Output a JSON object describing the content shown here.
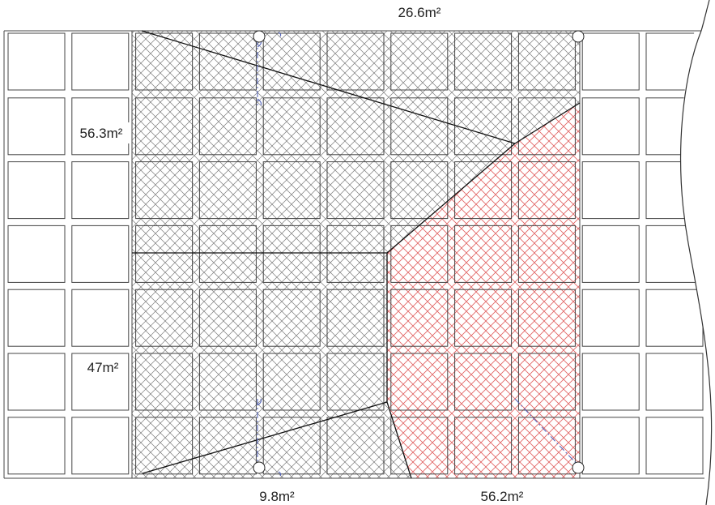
{
  "labels": {
    "top": "26.6m²",
    "left_upper": "56.3m²",
    "left_lower": "47m²",
    "bottom_left": "9.8m²",
    "bottom_right": "56.2m²"
  },
  "colors": {
    "background": "#ffffff",
    "grid_stroke": "#444444",
    "hatch_gray": "#7a7a7a",
    "hatch_red": "#e06060",
    "boundary_line": "#111111",
    "dimension_blue": "#5566bb"
  },
  "icons": {
    "corner_marker": "circle-marker-icon",
    "break_line": "curved-break-line-icon"
  }
}
